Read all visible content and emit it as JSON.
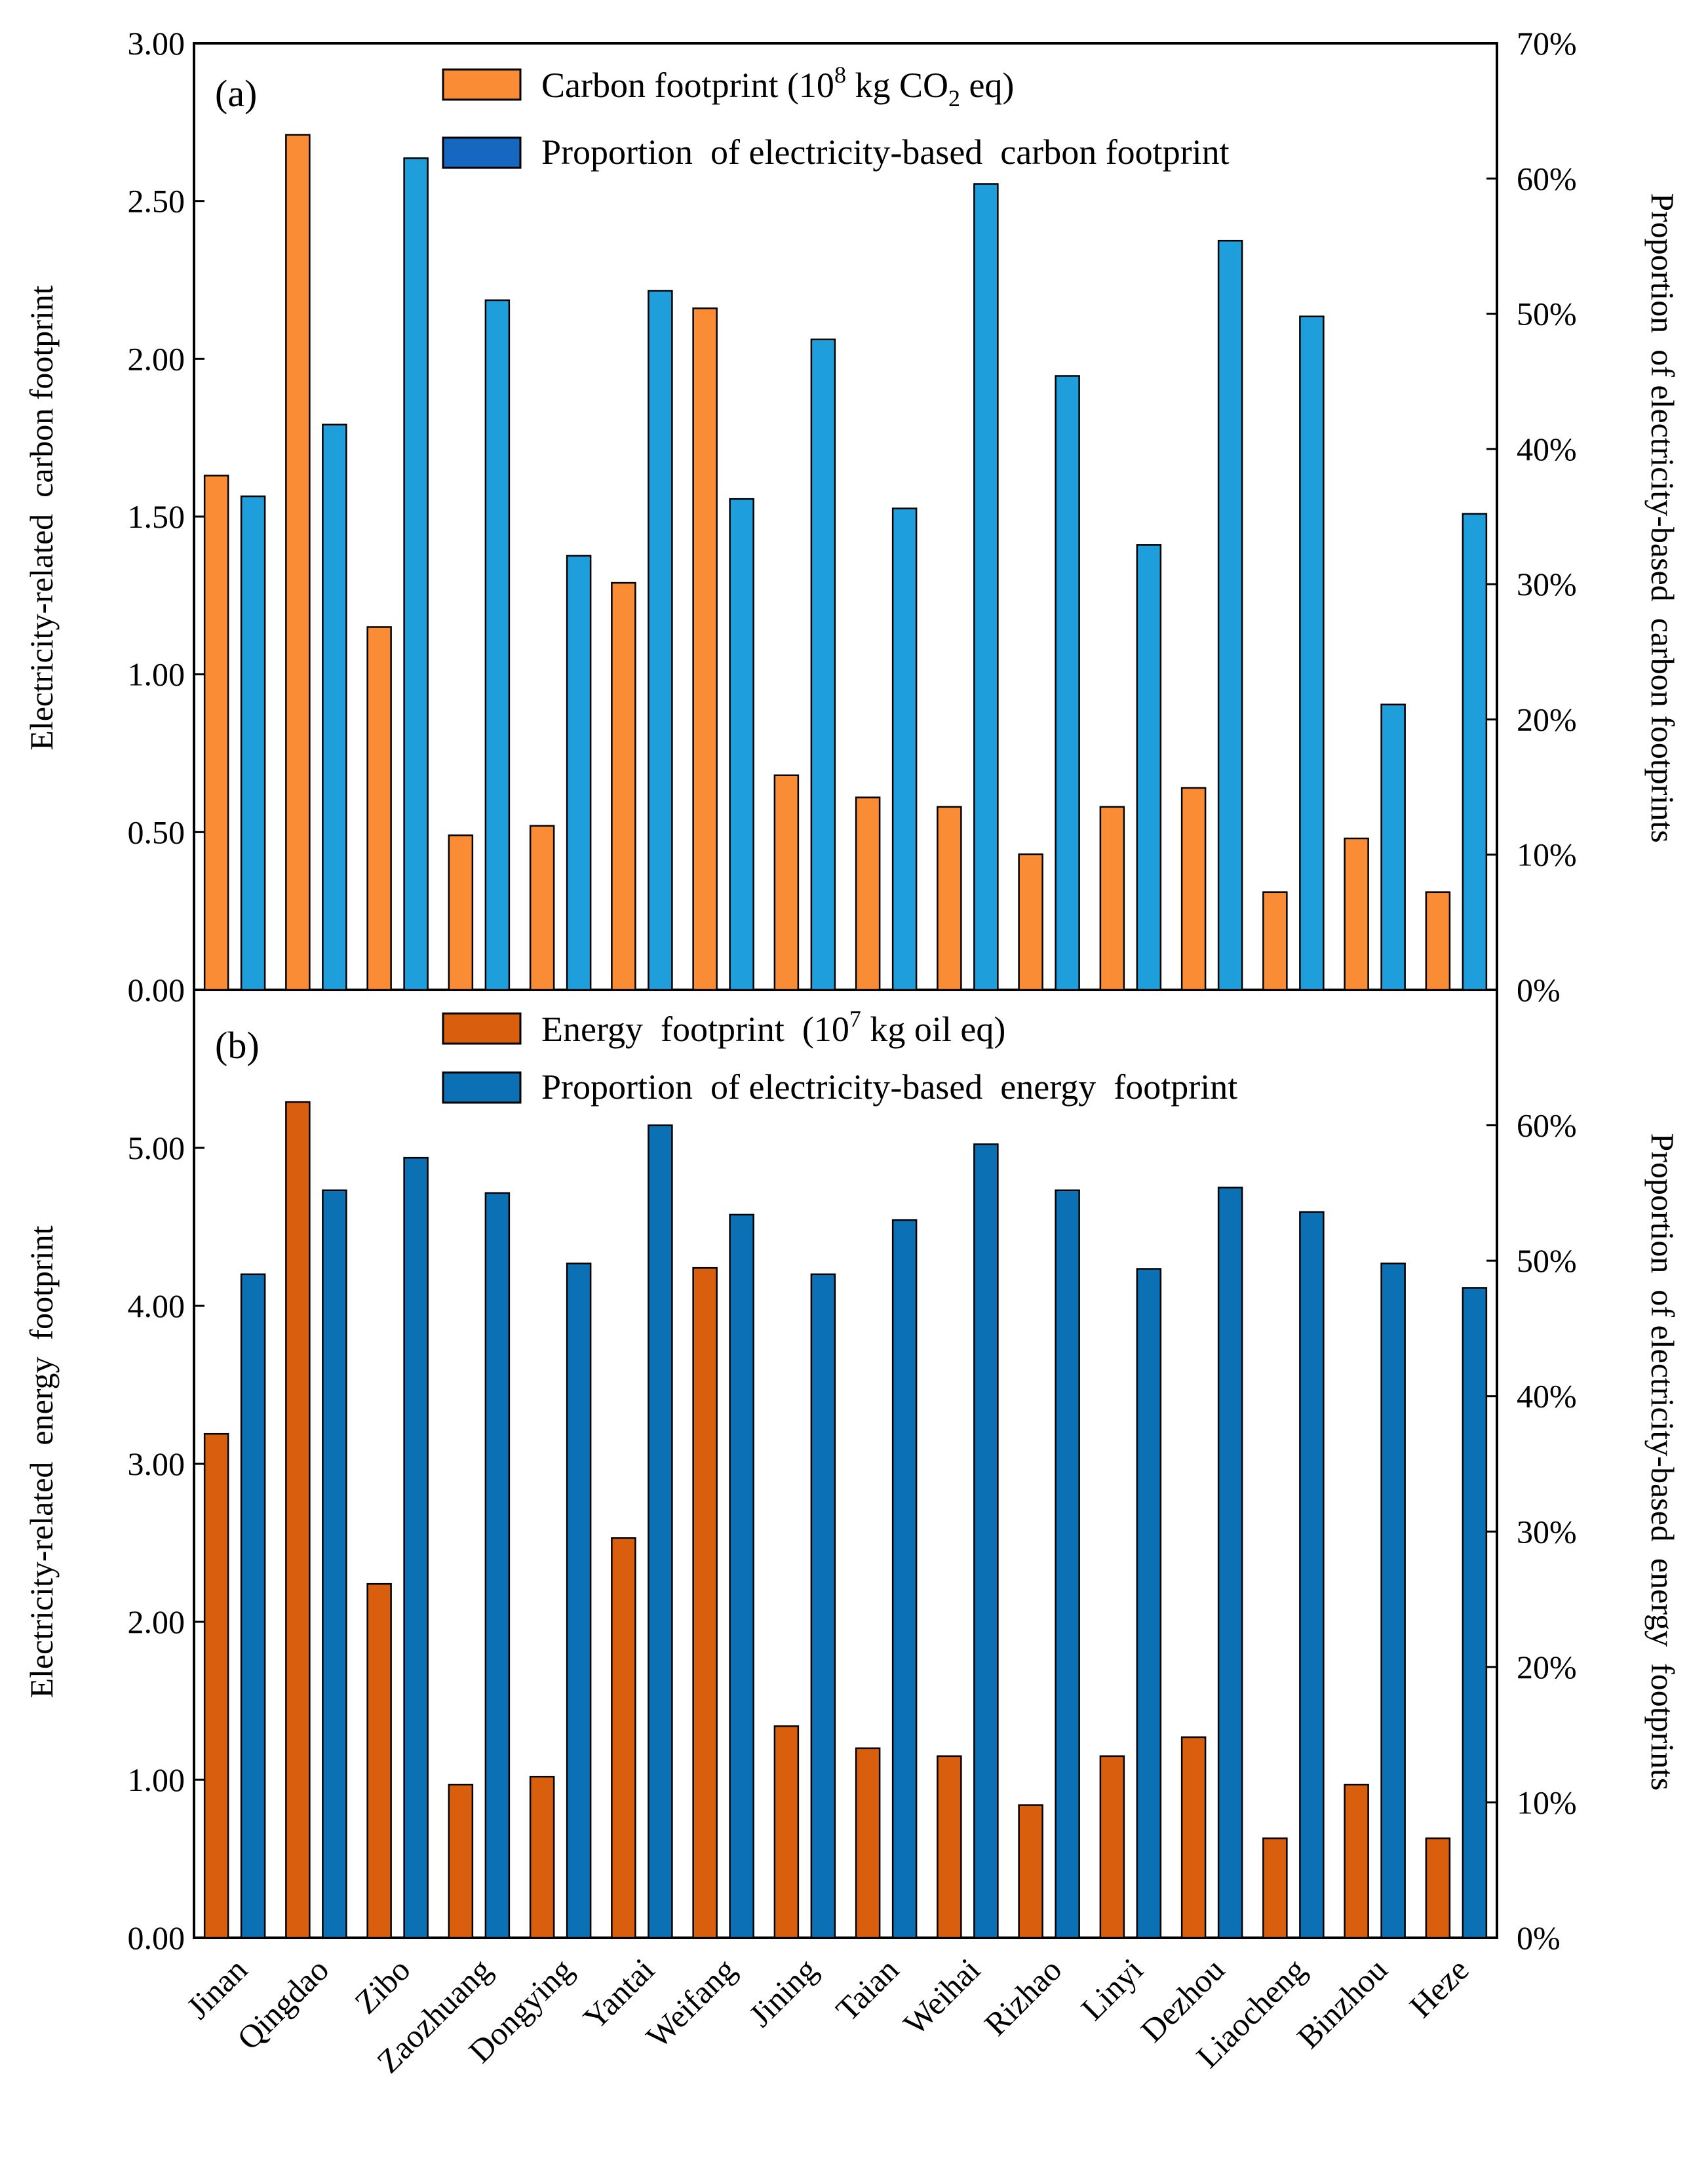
{
  "figure": {
    "categories": [
      "Jinan",
      "Qingdao",
      "Zibo",
      "Zaozhuang",
      "Dongying",
      "Yantai",
      "Weifang",
      "Jining",
      "Taian",
      "Weihai",
      "Rizhao",
      "Linyi",
      "Dezhou",
      "Liaocheng",
      "Binzhou",
      "Heze"
    ]
  },
  "chart_data": [
    {
      "type": "bar",
      "panel_label": "(a)",
      "title": "",
      "categories": [
        "Jinan",
        "Qingdao",
        "Zibo",
        "Zaozhuang",
        "Dongying",
        "Yantai",
        "Weifang",
        "Jining",
        "Taian",
        "Weihai",
        "Rizhao",
        "Linyi",
        "Dezhou",
        "Liaocheng",
        "Binzhou",
        "Heze"
      ],
      "ylabel": "Electricity-related  carbon footprint",
      "y2label": "Proportion  of electricity-based  carbon footprints",
      "ylim": [
        0,
        3.0
      ],
      "y2lim": [
        0,
        70
      ],
      "yticks": [
        "0.00",
        "0.50",
        "1.00",
        "1.50",
        "2.00",
        "2.50",
        "3.00"
      ],
      "y2ticks": [
        "0%",
        "10%",
        "20%",
        "30%",
        "40%",
        "50%",
        "60%",
        "70%"
      ],
      "grid": false,
      "legend_position": "top-center",
      "series": [
        {
          "name": "Carbon footprint (10⁸ kg CO₂ eq)",
          "legend_text": "Carbon footprint (10",
          "legend_sup": "8",
          "legend_mid": " kg CO",
          "legend_sub": "2",
          "legend_end": " eq)",
          "axis": "left",
          "color": "#F98C35",
          "values": [
            1.63,
            2.71,
            1.15,
            0.49,
            0.52,
            1.29,
            2.16,
            0.68,
            0.61,
            0.58,
            0.43,
            0.58,
            0.64,
            0.31,
            0.48,
            0.31
          ]
        },
        {
          "name": "Proportion  of electricity-based  carbon footprint",
          "axis": "right",
          "color": "#1E9FDB",
          "legend_color": "#1667C0",
          "values": [
            36.5,
            41.8,
            61.5,
            51.0,
            32.1,
            51.7,
            36.3,
            48.1,
            35.6,
            59.6,
            45.4,
            32.9,
            55.4,
            49.8,
            21.1,
            35.2
          ]
        }
      ]
    },
    {
      "type": "bar",
      "panel_label": "(b)",
      "title": "",
      "categories": [
        "Jinan",
        "Qingdao",
        "Zibo",
        "Zaozhuang",
        "Dongying",
        "Yantai",
        "Weifang",
        "Jining",
        "Taian",
        "Weihai",
        "Rizhao",
        "Linyi",
        "Dezhou",
        "Liaocheng",
        "Binzhou",
        "Heze"
      ],
      "ylabel": "Electricity-related  energy  footprint",
      "y2label": "Proportion  of electricity-based  energy  footprints",
      "ylim": [
        0,
        6.0
      ],
      "y2lim": [
        0,
        70
      ],
      "yticks": [
        "0.00",
        "1.00",
        "2.00",
        "3.00",
        "4.00",
        "5.00"
      ],
      "y2ticks": [
        "0%",
        "10%",
        "20%",
        "30%",
        "40%",
        "50%",
        "60%"
      ],
      "grid": false,
      "legend_position": "top-center",
      "series": [
        {
          "name": "Energy  footprint  (10⁷ kg oil eq)",
          "legend_text": "Energy  footprint  (10",
          "legend_sup": "7",
          "legend_mid": " kg oil eq)",
          "legend_sub": "",
          "legend_end": "",
          "axis": "left",
          "color": "#D95F0E",
          "values": [
            3.19,
            5.29,
            2.24,
            0.97,
            1.02,
            2.53,
            4.24,
            1.34,
            1.2,
            1.15,
            0.84,
            1.15,
            1.27,
            0.63,
            0.97,
            0.63
          ]
        },
        {
          "name": "Proportion  of electricity-based  energy  footprint",
          "axis": "right",
          "color": "#0C71B4",
          "legend_color": "#0C71B4",
          "values": [
            49.0,
            55.2,
            57.6,
            55.0,
            49.8,
            60.0,
            53.4,
            49.0,
            53.0,
            58.6,
            55.2,
            49.4,
            55.4,
            53.6,
            49.8,
            48.0
          ]
        }
      ]
    }
  ]
}
